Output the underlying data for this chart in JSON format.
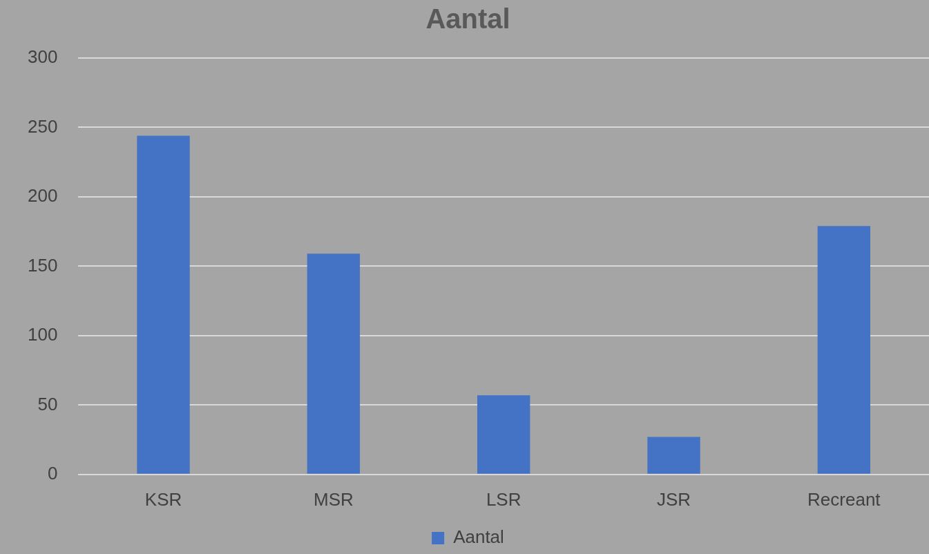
{
  "chart_data": {
    "type": "bar",
    "title": "Aantal",
    "categories": [
      "KSR",
      "MSR",
      "LSR",
      "JSR",
      "Recreant"
    ],
    "series": [
      {
        "name": "Aantal",
        "color": "#4472c4",
        "values": [
          244,
          159,
          57,
          27,
          179
        ]
      }
    ],
    "ylim": [
      0,
      300
    ],
    "yticks": [
      0,
      50,
      100,
      150,
      200,
      250,
      300
    ],
    "grid": "y",
    "legend": "bottom"
  }
}
